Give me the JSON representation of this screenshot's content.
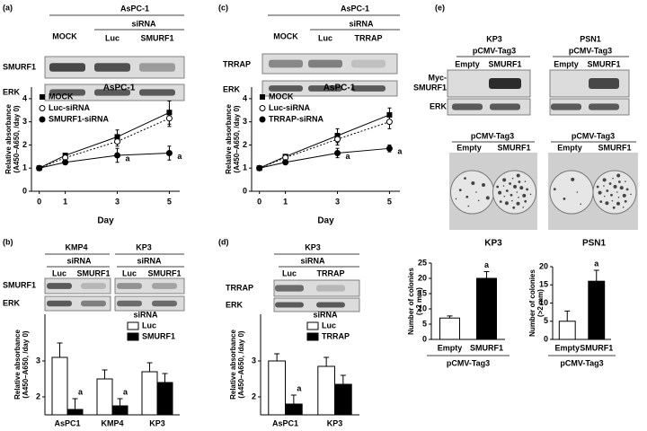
{
  "panels": {
    "labels": [
      "(a)",
      "(b)",
      "(c)",
      "(d)",
      "(e)"
    ]
  },
  "blot_a": {
    "cell": "AsPC-1",
    "treatment": "siRNA",
    "lanes": [
      "MOCK",
      "Luc",
      "SMURF1"
    ],
    "rows": [
      "SMURF1",
      "ERK"
    ]
  },
  "blot_b": {
    "groups": [
      {
        "cell": "KMP4",
        "treatment": "siRNA",
        "lanes": [
          "Luc",
          "SMURF1"
        ]
      },
      {
        "cell": "KP3",
        "treatment": "siRNA",
        "lanes": [
          "Luc",
          "SMURF1"
        ]
      }
    ],
    "rows": [
      "SMURF1",
      "ERK"
    ]
  },
  "blot_c": {
    "cell": "AsPC-1",
    "treatment": "siRNA",
    "lanes": [
      "MOCK",
      "Luc",
      "TRRAP"
    ],
    "rows": [
      "TRRAP",
      "ERK"
    ]
  },
  "blot_d": {
    "cell": "KP3",
    "treatment": "siRNA",
    "lanes": [
      "Luc",
      "TRRAP"
    ],
    "rows": [
      "TRRAP",
      "ERK"
    ]
  },
  "blot_e": {
    "groups": [
      {
        "cell": "KP3",
        "vector": "pCMV-Tag3",
        "lanes": [
          "Empty",
          "SMURF1"
        ]
      },
      {
        "cell": "PSN1",
        "vector": "pCMV-Tag3",
        "lanes": [
          "Empty",
          "SMURF1"
        ]
      }
    ],
    "rows": [
      [
        "Myc-",
        "SMURF1"
      ],
      "ERK"
    ]
  },
  "colony_e": {
    "groups": [
      {
        "cell": "KP3",
        "vector": "pCMV-Tag3",
        "lanes": [
          "Empty",
          "SMURF1"
        ]
      },
      {
        "cell": "PSN1",
        "vector": "pCMV-Tag3",
        "lanes": [
          "Empty",
          "SMURF1"
        ]
      }
    ]
  },
  "chart_data": [
    {
      "type": "line",
      "title": "AsPC-1",
      "x": [
        0,
        1,
        3,
        5
      ],
      "xlim": [
        -0.3,
        5.4
      ],
      "xticks": [
        0,
        1,
        3,
        5
      ],
      "ylim": [
        0,
        4.5
      ],
      "yticks": [
        0,
        1,
        2,
        3,
        4
      ],
      "xlabel": "Day",
      "ylabel": [
        "Relative absorbance",
        "(A450–A650, /day 0)"
      ],
      "series": [
        {
          "name": "MOCK",
          "color": "#000000",
          "marker": "square",
          "values": [
            1,
            1.55,
            2.35,
            3.4
          ],
          "errors": [
            0.05,
            0.06,
            0.3,
            0.5
          ]
        },
        {
          "name": "Luc-siRNA",
          "color": "#000000",
          "marker": "open-circle",
          "dash": true,
          "values": [
            1,
            1.45,
            2.15,
            3.15
          ],
          "errors": [
            0.05,
            0.06,
            0.2,
            0.35
          ]
        },
        {
          "name": "SMURF1-siRNA",
          "color": "#000000",
          "marker": "circle",
          "values": [
            1,
            1.25,
            1.55,
            1.65
          ],
          "errors": [
            0.05,
            0.06,
            0.3,
            0.3
          ]
        }
      ],
      "annotations": [
        "a",
        "a"
      ]
    },
    {
      "type": "bar",
      "categories": [
        "AsPC1",
        "KMP4",
        "KP3"
      ],
      "ylim": [
        1.5,
        4.3
      ],
      "yticks": [
        2,
        3
      ],
      "ylabel": [
        "Relative absorbance",
        "(A450–A650, /day 0)"
      ],
      "legend_title": "siRNA",
      "series": [
        {
          "name": "Luc",
          "color": "#ffffff",
          "values": [
            3.1,
            2.5,
            2.7
          ],
          "errors": [
            0.4,
            0.25,
            0.25
          ]
        },
        {
          "name": "SMURF1",
          "color": "#000000",
          "values": [
            1.65,
            1.75,
            2.4
          ],
          "errors": [
            0.3,
            0.2,
            0.25
          ]
        }
      ],
      "annotations": [
        "a",
        "a"
      ]
    },
    {
      "type": "line",
      "title": "AsPC-1",
      "x": [
        0,
        1,
        3,
        5
      ],
      "xlim": [
        -0.3,
        5.4
      ],
      "xticks": [
        0,
        1,
        3,
        5
      ],
      "ylim": [
        0,
        4.5
      ],
      "yticks": [
        0,
        1,
        2,
        3,
        4
      ],
      "xlabel": "Day",
      "ylabel": [
        "Relative absorbance",
        "(A450–A650, /day 0)"
      ],
      "series": [
        {
          "name": "MOCK",
          "color": "#000000",
          "marker": "square",
          "values": [
            1,
            1.5,
            2.4,
            3.3
          ],
          "errors": [
            0.05,
            0.06,
            0.3,
            0.3
          ]
        },
        {
          "name": "Luc-siRNA",
          "color": "#000000",
          "marker": "open-circle",
          "dash": true,
          "values": [
            1,
            1.45,
            2.25,
            3.0
          ],
          "errors": [
            0.05,
            0.06,
            0.25,
            0.3
          ]
        },
        {
          "name": "TRRAP-siRNA",
          "color": "#000000",
          "marker": "circle",
          "values": [
            1,
            1.25,
            1.65,
            1.85
          ],
          "errors": [
            0.05,
            0.06,
            0.2,
            0.15
          ]
        }
      ],
      "annotations": [
        "a",
        "a"
      ]
    },
    {
      "type": "bar",
      "categories": [
        "AsPC1",
        "KP3"
      ],
      "ylim": [
        1.5,
        4.3
      ],
      "yticks": [
        2,
        3
      ],
      "ylabel": [
        "Relative absorbance",
        "(A450–A650, /day 0)"
      ],
      "legend_title": "siRNA",
      "series": [
        {
          "name": "Luc",
          "color": "#ffffff",
          "values": [
            3.0,
            2.85
          ],
          "errors": [
            0.2,
            0.25
          ]
        },
        {
          "name": "TRRAP",
          "color": "#000000",
          "values": [
            1.8,
            2.35
          ],
          "errors": [
            0.25,
            0.25
          ]
        }
      ],
      "annotations": [
        "a"
      ]
    },
    {
      "type": "bar",
      "categories": [
        "Empty",
        "SMURF1"
      ],
      "values": [
        7,
        20
      ],
      "errors": [
        0.7,
        2.2
      ],
      "colors": [
        "#ffffff",
        "#000000"
      ],
      "ylim": [
        0,
        25
      ],
      "yticks": [
        0,
        5,
        10,
        15,
        20,
        25
      ],
      "xlabel": "pCMV-Tag3",
      "ylabel": [
        "Number of colonies",
        "(>2 mm)"
      ],
      "annotations": [
        "a"
      ]
    },
    {
      "type": "bar",
      "categories": [
        "Empty",
        "SMURF1"
      ],
      "values": [
        5,
        16
      ],
      "errors": [
        2.8,
        3
      ],
      "colors": [
        "#ffffff",
        "#000000"
      ],
      "ylim": [
        0,
        20
      ],
      "yticks": [
        0,
        5,
        10,
        15,
        20
      ],
      "xlabel": "pCMV-Tag3",
      "ylabel": [
        "Number of colonies",
        "(>2 mm)"
      ],
      "annotations": [
        "a"
      ]
    }
  ]
}
